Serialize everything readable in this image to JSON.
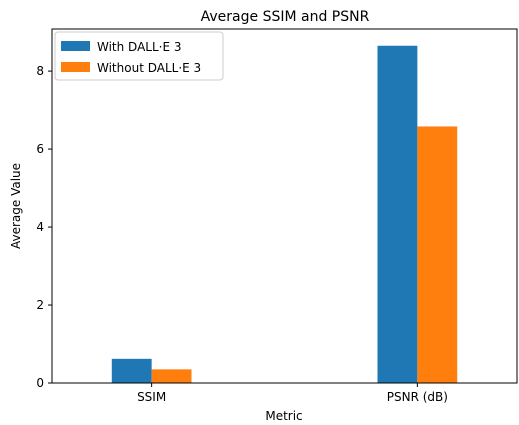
{
  "chart_data": {
    "type": "bar",
    "title": "Average SSIM and PSNR",
    "xlabel": "Metric",
    "ylabel": "Average Value",
    "categories": [
      "SSIM",
      "PSNR (dB)"
    ],
    "series": [
      {
        "name": "With DALL·E 3",
        "values": [
          0.62,
          8.65
        ],
        "color": "#1f77b4"
      },
      {
        "name": "Without DALL·E 3",
        "values": [
          0.35,
          6.58
        ],
        "color": "#ff7f0e"
      }
    ],
    "ylim": [
      0,
      9.08
    ],
    "yticks": [
      0,
      2,
      4,
      6,
      8
    ],
    "grid": false,
    "legend_position": "upper-left"
  }
}
